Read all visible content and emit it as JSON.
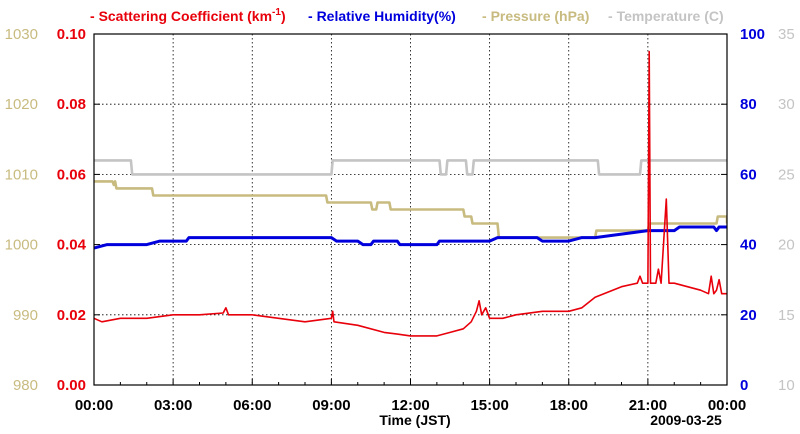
{
  "colors": {
    "scattering": "#e8000b",
    "humidity": "#0000dd",
    "pressure": "#c8bb80",
    "temperature": "#c4c4c4",
    "grid": "#000000"
  },
  "legend": [
    {
      "key": "scattering",
      "dash": "-",
      "label": "Scattering Coefficient (km",
      "sup": "-1",
      "after": ")"
    },
    {
      "key": "humidity",
      "dash": "-",
      "label": "Relative Humidity(%)"
    },
    {
      "key": "pressure",
      "dash": "-",
      "label": "Pressure (hPa)"
    },
    {
      "key": "temperature",
      "dash": "-",
      "label": "Temperature (C)"
    }
  ],
  "chart_data": {
    "type": "line",
    "xlabel": "Time (JST)",
    "date_label": "2009-03-25",
    "x_ticks": [
      "00:00",
      "03:00",
      "06:00",
      "09:00",
      "12:00",
      "15:00",
      "18:00",
      "21:00",
      "00:00"
    ],
    "xlim_hours": [
      0,
      24
    ],
    "axes": {
      "scattering": {
        "side": "left-inner",
        "range": [
          0,
          0.1
        ],
        "ticks": [
          "0.00",
          "0.02",
          "0.04",
          "0.06",
          "0.08",
          "0.10"
        ]
      },
      "pressure": {
        "side": "left-outer",
        "range": [
          980,
          1030
        ],
        "ticks": [
          "980",
          "990",
          "1000",
          "1010",
          "1020",
          "1030"
        ]
      },
      "humidity": {
        "side": "right-inner",
        "range": [
          0,
          100
        ],
        "ticks": [
          "0",
          "20",
          "40",
          "60",
          "80",
          "100"
        ]
      },
      "temperature": {
        "side": "right-outer",
        "range": [
          10,
          35
        ],
        "ticks": [
          "10",
          "15",
          "20",
          "25",
          "30",
          "35"
        ]
      }
    },
    "grid": true,
    "series": [
      {
        "key": "scattering",
        "name": "Scattering Coefficient (km-1)",
        "points": [
          [
            0,
            0.019
          ],
          [
            0.3,
            0.018
          ],
          [
            1,
            0.019
          ],
          [
            2,
            0.019
          ],
          [
            3,
            0.02
          ],
          [
            4,
            0.02
          ],
          [
            4.9,
            0.0205
          ],
          [
            5,
            0.022
          ],
          [
            5.1,
            0.02
          ],
          [
            6,
            0.02
          ],
          [
            7,
            0.019
          ],
          [
            8,
            0.018
          ],
          [
            9,
            0.019
          ],
          [
            9.05,
            0.021
          ],
          [
            9.1,
            0.018
          ],
          [
            10,
            0.017
          ],
          [
            11,
            0.015
          ],
          [
            11.5,
            0.0145
          ],
          [
            12,
            0.014
          ],
          [
            13,
            0.014
          ],
          [
            13.5,
            0.015
          ],
          [
            14,
            0.016
          ],
          [
            14.3,
            0.018
          ],
          [
            14.5,
            0.021
          ],
          [
            14.6,
            0.024
          ],
          [
            14.7,
            0.02
          ],
          [
            14.85,
            0.022
          ],
          [
            15,
            0.019
          ],
          [
            15.5,
            0.019
          ],
          [
            16,
            0.02
          ],
          [
            17,
            0.021
          ],
          [
            18,
            0.021
          ],
          [
            18.5,
            0.022
          ],
          [
            19,
            0.025
          ],
          [
            20,
            0.028
          ],
          [
            20.6,
            0.029
          ],
          [
            20.7,
            0.031
          ],
          [
            20.8,
            0.029
          ],
          [
            21,
            0.029
          ],
          [
            21.05,
            0.095
          ],
          [
            21.1,
            0.029
          ],
          [
            21.3,
            0.029
          ],
          [
            21.4,
            0.033
          ],
          [
            21.5,
            0.029
          ],
          [
            21.7,
            0.053
          ],
          [
            21.8,
            0.029
          ],
          [
            22,
            0.029
          ],
          [
            23,
            0.027
          ],
          [
            23.3,
            0.026
          ],
          [
            23.4,
            0.031
          ],
          [
            23.5,
            0.026
          ],
          [
            23.6,
            0.027
          ],
          [
            23.7,
            0.03
          ],
          [
            23.8,
            0.026
          ],
          [
            24,
            0.026
          ]
        ]
      },
      {
        "key": "humidity",
        "name": "Relative Humidity(%)",
        "points": [
          [
            0,
            39
          ],
          [
            0.5,
            40
          ],
          [
            2,
            40
          ],
          [
            2.5,
            41
          ],
          [
            3.5,
            41
          ],
          [
            3.6,
            42
          ],
          [
            9,
            42
          ],
          [
            9.2,
            41
          ],
          [
            10,
            41
          ],
          [
            10.2,
            40
          ],
          [
            10.5,
            40
          ],
          [
            10.6,
            41
          ],
          [
            11.5,
            41
          ],
          [
            11.6,
            40
          ],
          [
            13,
            40
          ],
          [
            13.1,
            41
          ],
          [
            15,
            41
          ],
          [
            15.3,
            42
          ],
          [
            16.8,
            42
          ],
          [
            17,
            41
          ],
          [
            18,
            41
          ],
          [
            18.5,
            42
          ],
          [
            19,
            42
          ],
          [
            20,
            43
          ],
          [
            21,
            44
          ],
          [
            22,
            44
          ],
          [
            22.2,
            45
          ],
          [
            23.5,
            45
          ],
          [
            23.6,
            44
          ],
          [
            23.7,
            45
          ],
          [
            24,
            45
          ]
        ]
      },
      {
        "key": "pressure",
        "name": "Pressure (hPa)",
        "points": [
          [
            0,
            1009
          ],
          [
            0.7,
            1009
          ],
          [
            0.75,
            1008.5
          ],
          [
            0.8,
            1009
          ],
          [
            0.85,
            1008
          ],
          [
            2.2,
            1008
          ],
          [
            2.25,
            1007
          ],
          [
            8.8,
            1007
          ],
          [
            8.85,
            1006
          ],
          [
            10.5,
            1006
          ],
          [
            10.55,
            1005
          ],
          [
            10.7,
            1005
          ],
          [
            10.75,
            1006
          ],
          [
            11.2,
            1006
          ],
          [
            11.25,
            1005
          ],
          [
            14,
            1005
          ],
          [
            14.05,
            1004
          ],
          [
            14.3,
            1004
          ],
          [
            14.35,
            1003
          ],
          [
            15.3,
            1003
          ],
          [
            15.35,
            1001
          ],
          [
            19,
            1001
          ],
          [
            19.05,
            1002
          ],
          [
            21,
            1002
          ],
          [
            21.05,
            1003
          ],
          [
            23.6,
            1003
          ],
          [
            23.65,
            1004
          ],
          [
            24,
            1004
          ],
          [
            24,
            1003
          ]
        ]
      },
      {
        "key": "temperature",
        "name": "Temperature (C)",
        "points": [
          [
            0,
            26
          ],
          [
            1.4,
            26
          ],
          [
            1.45,
            25
          ],
          [
            9,
            25
          ],
          [
            9.05,
            26
          ],
          [
            13.1,
            26
          ],
          [
            13.15,
            25
          ],
          [
            13.35,
            25
          ],
          [
            13.4,
            26
          ],
          [
            14.1,
            26
          ],
          [
            14.15,
            25
          ],
          [
            14.35,
            25
          ],
          [
            14.4,
            26
          ],
          [
            19.1,
            26
          ],
          [
            19.15,
            25
          ],
          [
            20.7,
            25
          ],
          [
            20.75,
            26
          ],
          [
            24,
            26
          ]
        ]
      }
    ]
  }
}
